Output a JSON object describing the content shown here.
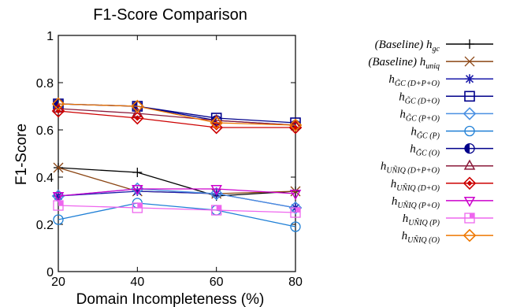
{
  "chart_data": {
    "type": "line",
    "title": "F1-Score Comparison",
    "xlabel": "Domain Incompleteness (%)",
    "ylabel": "F1-Score",
    "x": [
      20,
      40,
      60,
      80
    ],
    "xlim": [
      20,
      80
    ],
    "ylim": [
      0,
      1
    ],
    "xticks": [
      "20",
      "40",
      "60",
      "80"
    ],
    "yticks": [
      "0",
      "0.2",
      "0.4",
      "0.6",
      "0.8",
      "1"
    ],
    "legend_position": "right",
    "grid": false,
    "series": [
      {
        "name": "(Baseline) h_gc",
        "legend_main": "(Baseline) h",
        "legend_sub": "gc",
        "color": "#000000",
        "marker": "plus",
        "values": [
          0.44,
          0.42,
          0.32,
          0.34
        ]
      },
      {
        "name": "(Baseline) h_uniq",
        "legend_main": "(Baseline) h",
        "legend_sub": "uniq",
        "color": "#8b4513",
        "marker": "x",
        "values": [
          0.44,
          0.34,
          0.33,
          0.34
        ]
      },
      {
        "name": "h_GC~ (D+P+O)",
        "legend_main": "h",
        "legend_sub": "G̃C (D+P+O)",
        "color": "#1a1aaa",
        "marker": "star",
        "values": [
          0.32,
          0.34,
          0.33,
          0.27
        ]
      },
      {
        "name": "h_GC~ (D+O)",
        "legend_main": "h",
        "legend_sub": "G̃C (D+O)",
        "color": "#00008b",
        "marker": "square",
        "values": [
          0.71,
          0.7,
          0.65,
          0.63
        ]
      },
      {
        "name": "h_GC~ (P+O)",
        "legend_main": "h",
        "legend_sub": "G̃C (P+O)",
        "color": "#4a90e2",
        "marker": "diamond",
        "values": [
          0.32,
          0.35,
          0.33,
          0.27
        ]
      },
      {
        "name": "h_GC~ (P)",
        "legend_main": "h",
        "legend_sub": "G̃C (P)",
        "color": "#1e7fd6",
        "marker": "circle",
        "values": [
          0.22,
          0.29,
          0.26,
          0.19
        ]
      },
      {
        "name": "h_GC~ (O)",
        "legend_main": "h",
        "legend_sub": "G̃C (O)",
        "color": "#00008b",
        "marker": "halfcircle",
        "values": [
          0.71,
          0.7,
          0.64,
          0.62
        ]
      },
      {
        "name": "h_UÑIQ (D+P+O)",
        "legend_main": "h",
        "legend_sub": "UÑIQ (D+P+O)",
        "color": "#8b1a3a",
        "marker": "triangle",
        "values": [
          0.69,
          0.67,
          0.64,
          0.62
        ]
      },
      {
        "name": "h_UÑIQ (D+O)",
        "legend_main": "h",
        "legend_sub": "UÑIQ (D+O)",
        "color": "#cc0000",
        "marker": "diamondfill",
        "values": [
          0.68,
          0.65,
          0.61,
          0.61
        ]
      },
      {
        "name": "h_UÑIQ (P+O)",
        "legend_main": "h",
        "legend_sub": "UÑIQ (P+O)",
        "color": "#cc00cc",
        "marker": "triangledown",
        "values": [
          0.32,
          0.35,
          0.35,
          0.33
        ]
      },
      {
        "name": "h_UÑIQ (P)",
        "legend_main": "h",
        "legend_sub": "UÑIQ (P)",
        "color": "#ee66ee",
        "marker": "squarehalf",
        "values": [
          0.28,
          0.27,
          0.26,
          0.25
        ]
      },
      {
        "name": "h_UÑIQ (O)",
        "legend_main": "h",
        "legend_sub": "UÑIQ (O)",
        "color": "#ee7700",
        "marker": "diamond",
        "values": [
          0.71,
          0.7,
          0.63,
          0.62
        ]
      }
    ]
  }
}
